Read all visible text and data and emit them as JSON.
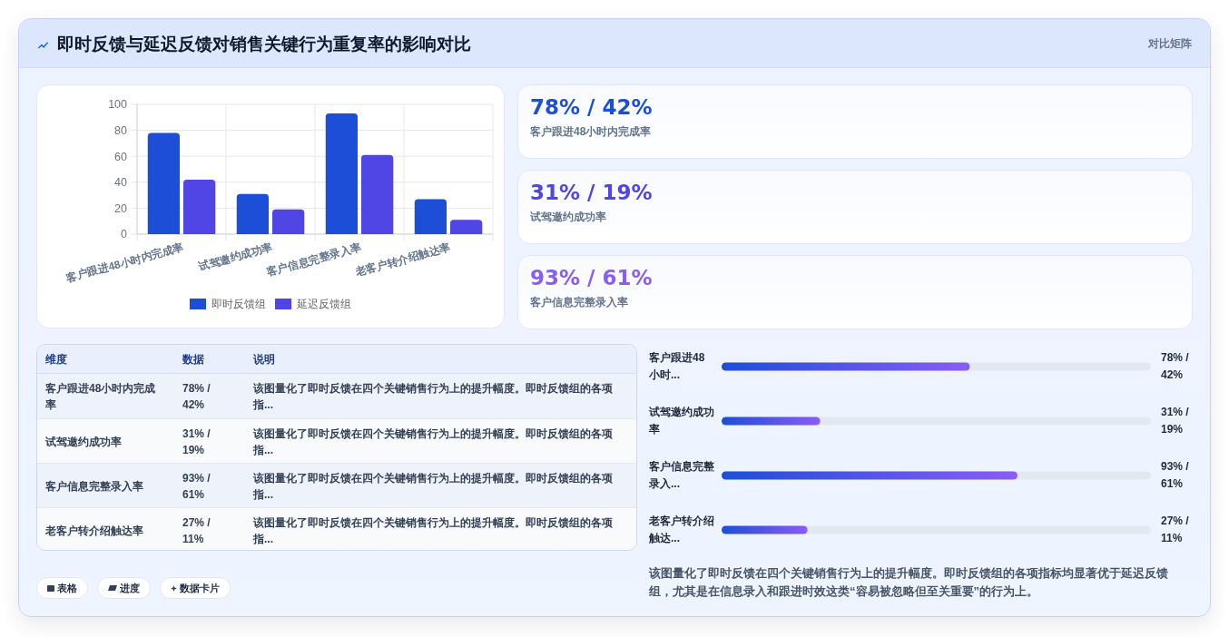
{
  "chart_data": [
    {
      "type": "other",
      "title": "即时反馈与延迟反馈对销售关键行为重复率的影响对比",
      "subtitle": "对比矩阵"
    },
    {
      "type": "bar",
      "categories": [
        "客户跟进48小时内完成率",
        "试驾邀约成功率",
        "客户信息完整录入率",
        "老客户转介绍触达率"
      ],
      "series": [
        {
          "name": "即时反馈组",
          "color": "#1d4ed8",
          "values": [
            78,
            31,
            93,
            27
          ]
        },
        {
          "name": "延迟反馈组",
          "color": "#4f46e5",
          "values": [
            42,
            19,
            61,
            11
          ]
        }
      ],
      "ylim": [
        0,
        100
      ],
      "yticks": [
        0,
        20,
        40,
        60,
        80,
        100
      ],
      "grid": true,
      "legend": "bottom"
    },
    {
      "type": "other",
      "categories": [
        "客户跟进48小时内完成率",
        "试驾邀约成功率",
        "客户信息完整录入率"
      ],
      "value_labels": [
        "78% / 42%",
        "31% / 19%",
        "93% / 61%"
      ]
    },
    {
      "type": "other",
      "categories": [
        "维度",
        "数据",
        "说明"
      ],
      "y_categories": [
        "客户跟进48小时内完成率",
        "试驾邀约成功率",
        "客户信息完整录入率",
        "老客户转介绍触达率"
      ],
      "cell_labels": [
        [
          "78% / 42%",
          "该图量化了即时反馈在四个关键销售行为上的提升幅度。即时反馈组的各项指..."
        ],
        [
          "31% / 19%",
          "该图量化了即时反馈在四个关键销售行为上的提升幅度。即时反馈组的各项指..."
        ],
        [
          "93% / 61%",
          "该图量化了即时反馈在四个关键销售行为上的提升幅度。即时反馈组的各项指..."
        ],
        [
          "27% / 11%",
          "该图量化了即时反馈在四个关键销售行为上的提升幅度。即时反馈组的各项指..."
        ]
      ],
      "annotations": [
        "表格",
        "进度",
        "数据卡片"
      ]
    },
    {
      "type": "bar",
      "orientation": "horizontal",
      "categories": [
        "客户跟进48小时...",
        "试驾邀约成功率",
        "客户信息完整录入...",
        "老客户转介绍触达..."
      ],
      "values": [
        78,
        31,
        93,
        27
      ],
      "value_labels": [
        "78% / 42%",
        "31% / 19%",
        "93% / 61%",
        "27% / 11%"
      ],
      "color": "#1d4ed8",
      "annotations": [
        "该图量化了即时反馈在四个关键销售行为上的提升幅度。即时反馈组的各项指标均显著优于延迟反馈组，尤其是在信息录入和跟进时效这类“容易被忽略但至关重要”的行为上。"
      ]
    }
  ]
}
